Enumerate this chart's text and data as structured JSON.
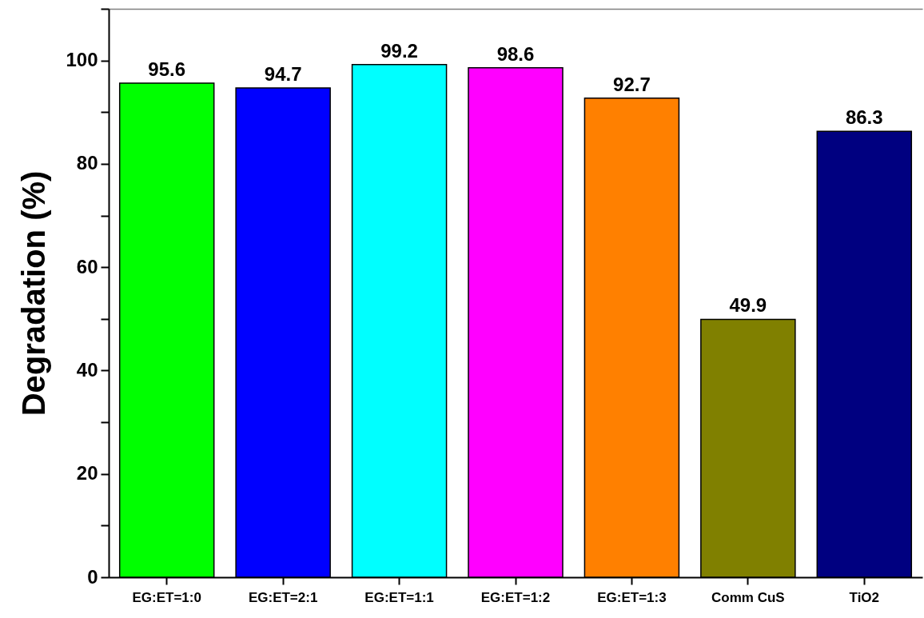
{
  "chart_data": {
    "type": "bar",
    "ylabel": "Degradation (%)",
    "categories": [
      "EG:ET=1:0",
      "EG:ET=2:1",
      "EG:ET=1:1",
      "EG:ET=1:2",
      "EG:ET=1:3",
      "Comm CuS",
      "TiO2"
    ],
    "values": [
      95.6,
      94.7,
      99.2,
      98.6,
      92.7,
      49.9,
      86.3
    ],
    "colors": [
      "#00ff00",
      "#0000ff",
      "#00ffff",
      "#ff00ff",
      "#ff8000",
      "#808000",
      "#000080"
    ],
    "ylim": [
      0,
      110
    ],
    "yticks": [
      0,
      {
        "value": 10,
        "label": null
      },
      20,
      {
        "value": 30,
        "label": null
      },
      40,
      {
        "value": 50,
        "label": null
      },
      60,
      {
        "value": 70,
        "label": null
      },
      80,
      {
        "value": 90,
        "label": null
      },
      100,
      {
        "value": 110,
        "label": null
      }
    ],
    "data_labels": true,
    "grid": false
  }
}
